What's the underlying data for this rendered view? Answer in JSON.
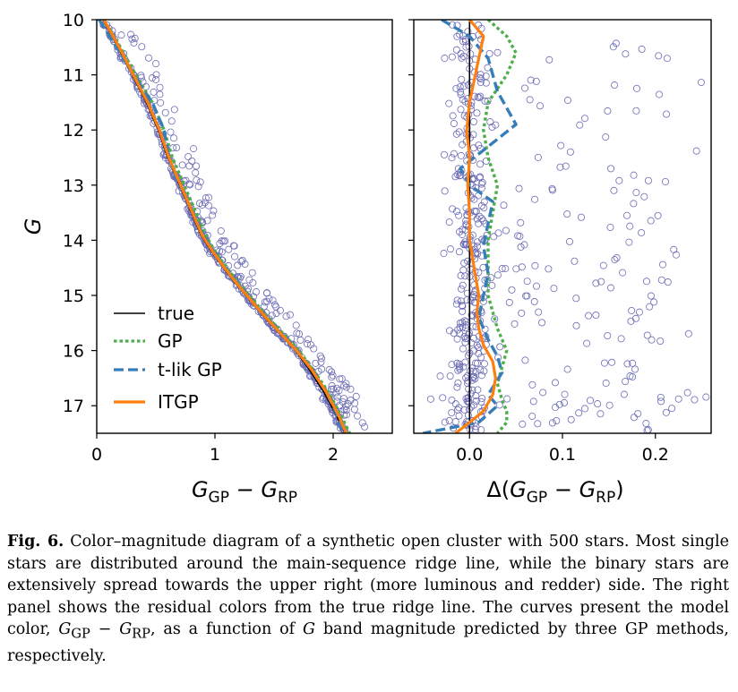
{
  "chart_data": [
    {
      "type": "scatter",
      "panel": "left",
      "xlabel": "G_GP − G_RP",
      "ylabel": "G",
      "xlim": [
        0,
        2.5
      ],
      "ylim": [
        17.5,
        10
      ],
      "y_inverted": true,
      "xticks": [
        "0",
        "1",
        "2"
      ],
      "yticks": [
        "10",
        "11",
        "12",
        "13",
        "14",
        "15",
        "16",
        "17"
      ],
      "legend_position": "lower-left",
      "legend": [
        "true",
        "GP",
        "t-lik GP",
        "ITGP"
      ],
      "star_count": 500,
      "series": [
        {
          "name": "true",
          "style": "solid",
          "color": "#000000",
          "x": [
            0.05,
            0.18,
            0.3,
            0.42,
            0.52,
            0.6,
            0.66,
            0.72,
            0.8,
            0.88,
            0.97,
            1.07,
            1.18,
            1.3,
            1.42,
            1.55,
            1.68,
            1.8,
            1.92,
            2.02,
            2.1
          ],
          "y": [
            10.0,
            10.5,
            11.0,
            11.5,
            12.0,
            12.5,
            12.8,
            13.1,
            13.5,
            13.9,
            14.2,
            14.5,
            14.8,
            15.1,
            15.4,
            15.7,
            16.0,
            16.35,
            16.75,
            17.15,
            17.5
          ]
        },
        {
          "name": "GP",
          "style": "dotted",
          "color": "#4daf4a",
          "x": [
            0.06,
            0.2,
            0.33,
            0.47,
            0.57,
            0.64,
            0.7,
            0.76,
            0.84,
            0.92,
            1.0,
            1.1,
            1.21,
            1.33,
            1.45,
            1.58,
            1.71,
            1.83,
            1.96,
            2.06,
            2.14
          ],
          "y": [
            10.0,
            10.5,
            11.0,
            11.5,
            12.0,
            12.5,
            12.8,
            13.1,
            13.5,
            13.9,
            14.2,
            14.5,
            14.8,
            15.1,
            15.4,
            15.7,
            16.0,
            16.35,
            16.75,
            17.15,
            17.5
          ]
        },
        {
          "name": "t-lik GP",
          "style": "dashed",
          "color": "#377eb8",
          "x": [
            0.02,
            0.17,
            0.31,
            0.47,
            0.57,
            0.61,
            0.66,
            0.73,
            0.81,
            0.9,
            0.98,
            1.08,
            1.19,
            1.31,
            1.43,
            1.56,
            1.69,
            1.82,
            1.94,
            2.03,
            2.08
          ],
          "y": [
            10.0,
            10.5,
            11.0,
            11.5,
            12.0,
            12.5,
            12.8,
            13.1,
            13.5,
            13.9,
            14.2,
            14.5,
            14.8,
            15.1,
            15.4,
            15.7,
            16.0,
            16.35,
            16.75,
            17.15,
            17.5
          ]
        },
        {
          "name": "ITGP",
          "style": "solid",
          "color": "#ff7f0e",
          "x": [
            0.06,
            0.19,
            0.31,
            0.43,
            0.53,
            0.61,
            0.67,
            0.73,
            0.81,
            0.89,
            0.98,
            1.08,
            1.19,
            1.31,
            1.43,
            1.56,
            1.69,
            1.82,
            1.94,
            2.04,
            2.11
          ],
          "y": [
            10.0,
            10.5,
            11.0,
            11.5,
            12.0,
            12.5,
            12.8,
            13.1,
            13.5,
            13.9,
            14.2,
            14.5,
            14.8,
            15.1,
            15.4,
            15.7,
            16.0,
            16.35,
            16.75,
            17.15,
            17.5
          ]
        }
      ]
    },
    {
      "type": "scatter",
      "panel": "right",
      "xlabel": "Δ(G_GP − G_RP)",
      "xlim": [
        -0.06,
        0.26
      ],
      "ylim": [
        17.5,
        10
      ],
      "y_inverted": true,
      "xticks": [
        "0.0",
        "0.1",
        "0.2"
      ],
      "series": [
        {
          "name": "true",
          "style": "solid",
          "color": "#000000",
          "x": [
            0.0,
            0.0
          ],
          "y": [
            10.0,
            17.5
          ]
        },
        {
          "name": "GP",
          "style": "dotted",
          "color": "#4daf4a",
          "x": [
            0.02,
            0.04,
            0.05,
            0.04,
            0.02,
            0.015,
            0.02,
            0.03,
            0.025,
            0.02,
            0.02,
            0.02,
            0.025,
            0.03,
            0.04,
            0.035,
            0.03,
            0.035,
            0.04,
            0.04,
            0.03
          ],
          "y": [
            10.0,
            10.3,
            10.6,
            11.0,
            11.5,
            12.0,
            12.5,
            13.0,
            13.5,
            14.0,
            14.5,
            15.0,
            15.3,
            15.6,
            16.0,
            16.3,
            16.6,
            16.9,
            17.1,
            17.3,
            17.5
          ]
        },
        {
          "name": "t-lik GP",
          "style": "dashed",
          "color": "#377eb8",
          "x": [
            -0.03,
            0.0,
            0.02,
            0.03,
            0.05,
            0.02,
            -0.01,
            0.0,
            0.025,
            0.02,
            0.015,
            0.02,
            0.015,
            0.01,
            0.02,
            0.03,
            0.035,
            0.02,
            0.03,
            0.01,
            -0.05
          ],
          "y": [
            10.0,
            10.3,
            10.7,
            11.3,
            11.9,
            12.3,
            12.7,
            13.0,
            13.3,
            13.7,
            14.1,
            14.6,
            15.0,
            15.4,
            15.8,
            16.1,
            16.4,
            16.8,
            17.0,
            17.3,
            17.5
          ]
        },
        {
          "name": "ITGP",
          "style": "solid",
          "color": "#ff7f0e",
          "x": [
            0.0,
            0.015,
            0.01,
            0.005,
            0.0,
            -0.003,
            0.0,
            -0.002,
            0.0,
            0.0,
            0.005,
            0.01,
            0.008,
            0.01,
            0.015,
            0.025,
            0.028,
            0.025,
            0.015,
            0.0,
            -0.015
          ],
          "y": [
            10.0,
            10.3,
            10.7,
            11.1,
            11.5,
            12.0,
            12.5,
            13.0,
            13.5,
            14.0,
            14.5,
            15.0,
            15.3,
            15.6,
            15.9,
            16.2,
            16.5,
            16.8,
            17.1,
            17.3,
            17.5
          ]
        }
      ]
    }
  ],
  "caption": {
    "label": "Fig. 6.",
    "text_1": " Color–magnitude diagram of a synthetic open cluster with 500 stars. Most single stars are distributed around the main-sequence ridge line, while the binary stars are extensively spread towards the upper right (more luminous and redder) side. The right panel shows the residual colors from the true ridge line. The curves present the model color, ",
    "math_1": "G",
    "sub_1": "GP",
    "math_2": " − G",
    "sub_2": "RP",
    "text_2": ", as a function of ",
    "math_3": "G",
    "text_3": " band magnitude predicted by three GP methods, respectively."
  },
  "colors": {
    "marker": "#6b6bb5",
    "true": "#000000",
    "gp": "#4daf4a",
    "tlik": "#377eb8",
    "itgp": "#ff7f0e"
  }
}
